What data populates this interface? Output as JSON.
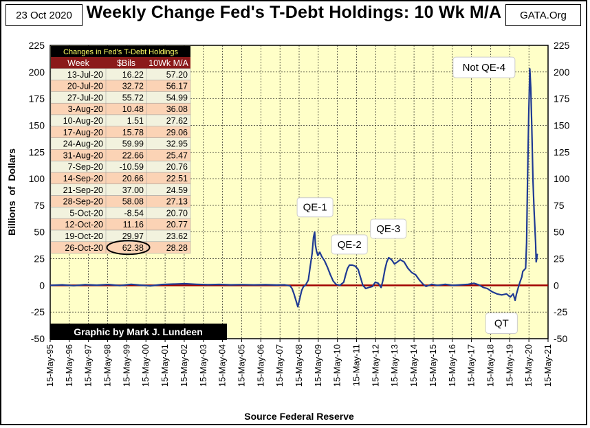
{
  "header": {
    "date": "23 Oct 2020",
    "title": "Weekly Change Fed's T-Debt Holdings: 10 Wk M/A",
    "source_tag": "GATA.Org"
  },
  "table": {
    "title": "Changes in Fed's T-Debt Holdings",
    "columns": [
      "Week",
      "$Bils",
      "10Wk M/A"
    ],
    "rows": [
      [
        "13-Jul-20",
        "16.22",
        "57.20"
      ],
      [
        "20-Jul-20",
        "32.72",
        "56.17"
      ],
      [
        "27-Jul-20",
        "55.72",
        "54.99"
      ],
      [
        "3-Aug-20",
        "10.48",
        "36.08"
      ],
      [
        "10-Aug-20",
        "1.51",
        "27.62"
      ],
      [
        "17-Aug-20",
        "15.78",
        "29.06"
      ],
      [
        "24-Aug-20",
        "59.99",
        "32.95"
      ],
      [
        "31-Aug-20",
        "22.66",
        "25.47"
      ],
      [
        "7-Sep-20",
        "-10.59",
        "20.76"
      ],
      [
        "14-Sep-20",
        "20.66",
        "22.51"
      ],
      [
        "21-Sep-20",
        "37.00",
        "24.59"
      ],
      [
        "28-Sep-20",
        "58.08",
        "27.13"
      ],
      [
        "5-Oct-20",
        "-8.54",
        "20.70"
      ],
      [
        "12-Oct-20",
        "11.16",
        "20.77"
      ],
      [
        "19-Oct-20",
        "29.97",
        "23.62"
      ],
      [
        "26-Oct-20",
        "62.38",
        "28.28"
      ]
    ],
    "highlight_row": 15,
    "highlight_col": 1
  },
  "credit": "Graphic by Mark J. Lundeen",
  "colors": {
    "plot_bg": "#FFFFC8",
    "line": "#1F3A93",
    "zero_line": "#A00000",
    "row_a": "#F2F2DE",
    "row_b": "#FBD3B5",
    "table_header_bg": "#000000",
    "table_header_fg": "#FFFF66"
  },
  "chart_data": {
    "type": "line",
    "title": "Weekly Change Fed's T-Debt Holdings: 10 Wk M/A",
    "xlabel": "Source Federal Reserve",
    "ylabel": "Billions  of  Dollars",
    "ylim": [
      -50,
      225
    ],
    "yticks": [
      -50,
      -25,
      0,
      25,
      50,
      75,
      100,
      125,
      150,
      175,
      200,
      225
    ],
    "xlim": [
      1995.37,
      2021.37
    ],
    "xticks": [
      "15-May-95",
      "15-May-96",
      "15-May-97",
      "15-May-98",
      "15-May-99",
      "15-May-00",
      "15-May-01",
      "15-May-02",
      "15-May-03",
      "15-May-04",
      "15-May-05",
      "15-May-06",
      "15-May-07",
      "15-May-08",
      "15-May-09",
      "15-May-10",
      "15-May-11",
      "15-May-12",
      "15-May-13",
      "15-May-14",
      "15-May-15",
      "15-May-16",
      "15-May-17",
      "15-May-18",
      "15-May-19",
      "15-May-20",
      "15-May-21"
    ],
    "grid": true,
    "series": [
      {
        "name": "10 Wk M/A",
        "points": [
          [
            1995.37,
            0
          ],
          [
            1996.0,
            0.5
          ],
          [
            1996.6,
            -0.3
          ],
          [
            1997.2,
            0.6
          ],
          [
            1997.8,
            0.2
          ],
          [
            1998.4,
            0.8
          ],
          [
            1999.0,
            -0.2
          ],
          [
            1999.6,
            1.0
          ],
          [
            2000.0,
            0.3
          ],
          [
            2000.6,
            -0.5
          ],
          [
            2001.2,
            0.8
          ],
          [
            2001.8,
            1.2
          ],
          [
            2002.4,
            1.5
          ],
          [
            2003.0,
            1.0
          ],
          [
            2003.6,
            0.6
          ],
          [
            2004.2,
            0.9
          ],
          [
            2004.8,
            0.5
          ],
          [
            2005.4,
            0.7
          ],
          [
            2006.0,
            0.4
          ],
          [
            2006.6,
            0.6
          ],
          [
            2007.2,
            0.3
          ],
          [
            2007.6,
            0.5
          ],
          [
            2007.9,
            -0.5
          ],
          [
            2008.0,
            -3
          ],
          [
            2008.1,
            -8
          ],
          [
            2008.2,
            -14
          ],
          [
            2008.3,
            -20
          ],
          [
            2008.4,
            -13
          ],
          [
            2008.5,
            -5
          ],
          [
            2008.6,
            -1
          ],
          [
            2008.7,
            0
          ],
          [
            2008.85,
            5
          ],
          [
            2008.95,
            18
          ],
          [
            2009.05,
            30
          ],
          [
            2009.12,
            45
          ],
          [
            2009.18,
            50
          ],
          [
            2009.22,
            38
          ],
          [
            2009.28,
            32
          ],
          [
            2009.35,
            28
          ],
          [
            2009.45,
            31
          ],
          [
            2009.55,
            27
          ],
          [
            2009.7,
            23
          ],
          [
            2009.85,
            17
          ],
          [
            2010.0,
            10
          ],
          [
            2010.15,
            4
          ],
          [
            2010.3,
            1
          ],
          [
            2010.5,
            0
          ],
          [
            2010.7,
            3
          ],
          [
            2010.8,
            10
          ],
          [
            2010.9,
            16
          ],
          [
            2011.0,
            19
          ],
          [
            2011.15,
            19
          ],
          [
            2011.3,
            18
          ],
          [
            2011.45,
            15
          ],
          [
            2011.6,
            6
          ],
          [
            2011.7,
            0
          ],
          [
            2011.85,
            -3
          ],
          [
            2012.0,
            -2
          ],
          [
            2012.2,
            -1
          ],
          [
            2012.35,
            3
          ],
          [
            2012.5,
            2
          ],
          [
            2012.65,
            -2
          ],
          [
            2012.75,
            5
          ],
          [
            2012.85,
            15
          ],
          [
            2012.95,
            22
          ],
          [
            2013.05,
            26
          ],
          [
            2013.2,
            24
          ],
          [
            2013.35,
            20
          ],
          [
            2013.5,
            22
          ],
          [
            2013.65,
            24
          ],
          [
            2013.85,
            22
          ],
          [
            2014.05,
            16
          ],
          [
            2014.25,
            12
          ],
          [
            2014.45,
            10
          ],
          [
            2014.65,
            5
          ],
          [
            2014.85,
            1
          ],
          [
            2015.0,
            -1
          ],
          [
            2015.3,
            1
          ],
          [
            2015.6,
            0
          ],
          [
            2016.0,
            1
          ],
          [
            2016.4,
            0
          ],
          [
            2016.8,
            0.5
          ],
          [
            2017.2,
            1
          ],
          [
            2017.5,
            2
          ],
          [
            2017.75,
            0.5
          ],
          [
            2018.0,
            -2
          ],
          [
            2018.2,
            -3
          ],
          [
            2018.45,
            -6
          ],
          [
            2018.7,
            -8
          ],
          [
            2018.95,
            -9
          ],
          [
            2019.2,
            -8
          ],
          [
            2019.4,
            -11
          ],
          [
            2019.55,
            -8
          ],
          [
            2019.65,
            -14
          ],
          [
            2019.72,
            -8
          ],
          [
            2019.8,
            -3
          ],
          [
            2019.9,
            3
          ],
          [
            2020.0,
            8
          ],
          [
            2020.05,
            13
          ],
          [
            2020.1,
            14
          ],
          [
            2020.15,
            15
          ],
          [
            2020.2,
            16
          ],
          [
            2020.25,
            40
          ],
          [
            2020.3,
            100
          ],
          [
            2020.36,
            160
          ],
          [
            2020.42,
            203
          ],
          [
            2020.47,
            185
          ],
          [
            2020.52,
            150
          ],
          [
            2020.58,
            100
          ],
          [
            2020.64,
            70
          ],
          [
            2020.68,
            55
          ],
          [
            2020.72,
            40
          ],
          [
            2020.75,
            22
          ],
          [
            2020.78,
            25
          ],
          [
            2020.8,
            29
          ],
          [
            2020.82,
            28.28
          ]
        ]
      }
    ],
    "annotations": [
      {
        "text": "QE-1",
        "x": 2009.2,
        "y": 50
      },
      {
        "text": "QE-2",
        "x": 2011.0,
        "y": 19
      },
      {
        "text": "QE-3",
        "x": 2013.1,
        "y": 26
      },
      {
        "text": "Not QE-4",
        "x": 2020.0,
        "y": 203
      },
      {
        "text": "QT",
        "x": 2019.3,
        "y": -11
      }
    ]
  }
}
